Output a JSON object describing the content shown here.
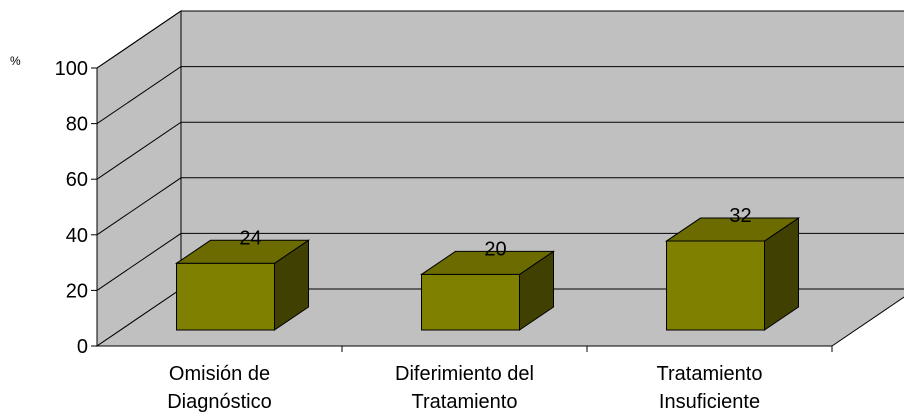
{
  "chart_data": {
    "type": "bar",
    "title": "",
    "ylabel": "%",
    "xlabel": "",
    "ylim": [
      0,
      100
    ],
    "yticks": [
      "0",
      "20",
      "40",
      "60",
      "80",
      "100"
    ],
    "categories": [
      [
        "Omisión de",
        "Diagnóstico"
      ],
      [
        "Diferimiento del",
        "Tratamiento"
      ],
      [
        "Tratamiento",
        "Insuficiente"
      ]
    ],
    "values": [
      24,
      20,
      32
    ],
    "data_labels": [
      "24",
      "20",
      "32"
    ],
    "grid": true,
    "three_d": true,
    "legend": "none",
    "colors": {
      "wall": "#c0c0c0",
      "floor": "#c0c0c0",
      "bar_front": "#808000",
      "bar_top": "#6b6b00",
      "bar_side": "#404000",
      "line": "#000000"
    }
  }
}
